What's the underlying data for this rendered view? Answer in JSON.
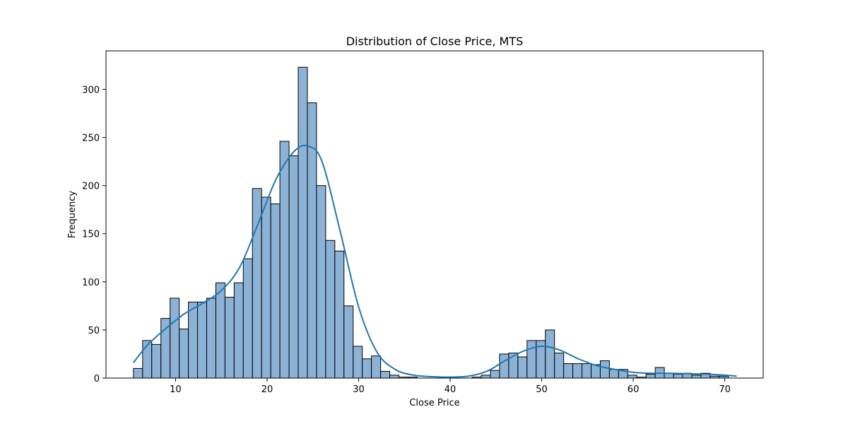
{
  "chart_data": {
    "type": "bar",
    "title": "Distribution of Close Price, MTS",
    "xlabel": "Close Price",
    "ylabel": "Frequency",
    "xlim": [
      2.4,
      74.2
    ],
    "ylim": [
      0,
      340
    ],
    "xticks": [
      10,
      20,
      30,
      40,
      50,
      60,
      70
    ],
    "yticks": [
      0,
      50,
      100,
      150,
      200,
      250,
      300
    ],
    "grid": false,
    "bar_color": "#8cb3d6",
    "bar_edge_color": "#000000",
    "kde_color": "#1f77b4",
    "bin_start": 5.4,
    "bin_width": 1.0,
    "values": [
      10,
      39,
      35,
      62,
      83,
      51,
      79,
      79,
      83,
      99,
      84,
      99,
      124,
      197,
      188,
      181,
      246,
      231,
      323,
      286,
      200,
      143,
      132,
      75,
      33,
      20,
      23,
      7,
      3,
      1,
      1,
      0,
      0,
      0,
      0,
      0,
      0,
      1,
      3,
      8,
      25,
      26,
      22,
      39,
      39,
      50,
      26,
      15,
      15,
      15,
      14,
      18,
      9,
      9,
      3,
      1,
      4,
      11,
      5,
      4,
      5,
      3,
      5,
      2,
      2
    ],
    "kde": {
      "x": [
        5.4,
        7,
        9,
        11,
        13,
        15,
        17,
        19,
        21,
        23,
        24.5,
        26,
        28,
        30,
        32,
        34,
        36,
        38,
        40,
        42,
        44,
        46,
        48,
        50,
        52,
        54,
        56,
        58,
        60,
        62,
        64,
        66,
        68,
        70,
        71.3
      ],
      "y": [
        16,
        35,
        52,
        67,
        78,
        91,
        115,
        160,
        207,
        236,
        241,
        225,
        152,
        74,
        27,
        9,
        3,
        1.5,
        1,
        2,
        7,
        18,
        28,
        33,
        29,
        20,
        13,
        9,
        6,
        5,
        5,
        4.5,
        4,
        3,
        2
      ]
    }
  }
}
